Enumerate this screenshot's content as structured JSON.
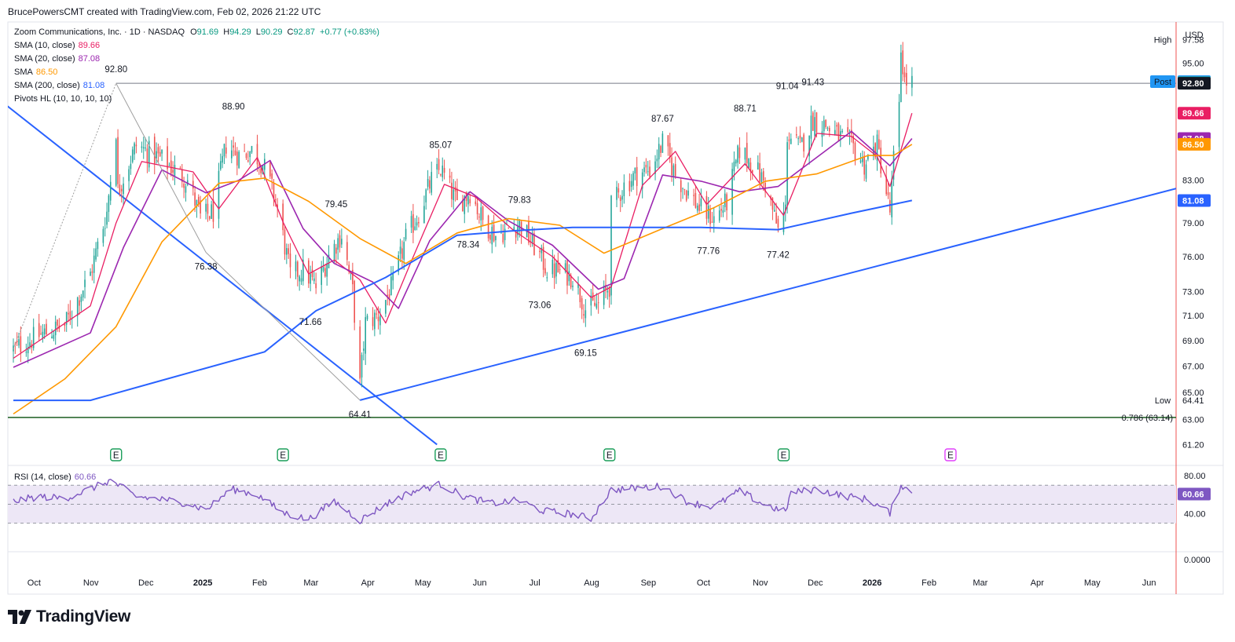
{
  "header": {
    "byline": "BrucePowersCMT created with TradingView.com, Feb 02, 2026 21:22 UTC"
  },
  "legend": {
    "symbol": "Zoom Communications, Inc. · 1D · NASDAQ",
    "ohlc": {
      "o_label": "O",
      "o": "91.69",
      "h_label": "H",
      "h": "94.29",
      "l_label": "L",
      "l": "90.29",
      "c_label": "C",
      "c": "92.87",
      "change": "+0.77 (+0.83%)"
    },
    "indicators": [
      {
        "label": "SMA (10, close)",
        "value": "89.66",
        "color": "#e91e63"
      },
      {
        "label": "SMA (20, close)",
        "value": "87.08",
        "color": "#9c27b0"
      },
      {
        "label": "SMA",
        "value": "86.50",
        "color": "#ff9800"
      },
      {
        "label": "SMA (200, close)",
        "value": "81.08",
        "color": "#2962ff"
      },
      {
        "label": "Pivots HL (10, 10, 10, 10)",
        "value": "",
        "color": "#131722"
      }
    ]
  },
  "currency": "USD",
  "colors": {
    "up": "#26a69a",
    "down": "#ef5350",
    "ink": "#131722",
    "trend": "#2962ff",
    "fib": "#1b5e20",
    "rsi": "#7e57c2",
    "rsi_band": "#ede7f6"
  },
  "chart_data": {
    "type": "candlestick",
    "symbol": "ZM",
    "timeframe": "1D",
    "price_axis": {
      "ticks": [
        97.58,
        95.0,
        92.87,
        92.8,
        89.66,
        87.08,
        86.5,
        83.0,
        81.08,
        79.0,
        76.0,
        73.0,
        71.0,
        69.0,
        67.0,
        65.0,
        63.0,
        61.2
      ],
      "scale": "log"
    },
    "time_axis": {
      "labels": [
        "Oct",
        "Nov",
        "Dec",
        "2025",
        "Feb",
        "Mar",
        "Apr",
        "May",
        "Jun",
        "Jul",
        "Aug",
        "Sep",
        "Oct",
        "Nov",
        "Dec",
        "2026",
        "Feb",
        "Mar",
        "Apr",
        "May",
        "Jun"
      ]
    },
    "price_path": [
      [
        "2024-09-30",
        68.3
      ],
      [
        "2024-10-14",
        69.4
      ],
      [
        "2024-10-28",
        70.2
      ],
      [
        "2024-11-11",
        74.5
      ],
      [
        "2024-11-20",
        80.0
      ],
      [
        "2024-11-25",
        88.0
      ],
      [
        "2024-11-26",
        82.0
      ],
      [
        "2024-12-06",
        86.4
      ],
      [
        "2024-12-20",
        85.0
      ],
      [
        "2025-01-03",
        83.0
      ],
      [
        "2025-01-10",
        79.5
      ],
      [
        "2025-01-17",
        80.0
      ],
      [
        "2025-01-24",
        86.5
      ],
      [
        "2025-01-31",
        85.4
      ],
      [
        "2025-02-07",
        85.9
      ],
      [
        "2025-02-13",
        84.6
      ],
      [
        "2025-02-20",
        81.2
      ],
      [
        "2025-02-28",
        74.4
      ],
      [
        "2025-03-07",
        74.9
      ],
      [
        "2025-03-14",
        73.4
      ],
      [
        "2025-03-21",
        76.1
      ],
      [
        "2025-03-28",
        78.0
      ],
      [
        "2025-04-03",
        73.0
      ],
      [
        "2025-04-07",
        65.5
      ],
      [
        "2025-04-10",
        70.4
      ],
      [
        "2025-04-17",
        71.0
      ],
      [
        "2025-04-25",
        73.6
      ],
      [
        "2025-05-02",
        77.6
      ],
      [
        "2025-05-09",
        79.9
      ],
      [
        "2025-05-16",
        83.0
      ],
      [
        "2025-05-21",
        84.1
      ],
      [
        "2025-05-30",
        80.7
      ],
      [
        "2025-06-06",
        81.9
      ],
      [
        "2025-06-13",
        79.2
      ],
      [
        "2025-06-20",
        77.9
      ],
      [
        "2025-06-27",
        78.5
      ],
      [
        "2025-07-03",
        78.9
      ],
      [
        "2025-07-11",
        76.9
      ],
      [
        "2025-07-18",
        74.9
      ],
      [
        "2025-07-25",
        74.7
      ],
      [
        "2025-08-01",
        74.3
      ],
      [
        "2025-08-08",
        71.6
      ],
      [
        "2025-08-15",
        71.9
      ],
      [
        "2025-08-21",
        73.5
      ],
      [
        "2025-08-22",
        80.5
      ],
      [
        "2025-08-29",
        82.5
      ],
      [
        "2025-09-05",
        83.6
      ],
      [
        "2025-09-12",
        84.0
      ],
      [
        "2025-09-19",
        86.6
      ],
      [
        "2025-09-26",
        83.5
      ],
      [
        "2025-10-03",
        81.8
      ],
      [
        "2025-10-10",
        80.2
      ],
      [
        "2025-10-17",
        79.4
      ],
      [
        "2025-10-24",
        80.9
      ],
      [
        "2025-10-31",
        86.0
      ],
      [
        "2025-11-07",
        84.6
      ],
      [
        "2025-11-14",
        82.6
      ],
      [
        "2025-11-21",
        78.3
      ],
      [
        "2025-11-25",
        80.2
      ],
      [
        "2025-11-26",
        87.5
      ],
      [
        "2025-12-03",
        86.1
      ],
      [
        "2025-12-10",
        89.0
      ],
      [
        "2025-12-17",
        88.4
      ],
      [
        "2025-12-24",
        87.3
      ],
      [
        "2025-12-31",
        86.4
      ],
      [
        "2026-01-07",
        84.5
      ],
      [
        "2026-01-14",
        86.4
      ],
      [
        "2026-01-21",
        80.0
      ],
      [
        "2026-01-23",
        85.0
      ],
      [
        "2026-01-26",
        90.0
      ],
      [
        "2026-01-27",
        96.5
      ],
      [
        "2026-01-29",
        93.0
      ],
      [
        "2026-02-02",
        92.87
      ]
    ],
    "pivots": [
      {
        "label": "92.80",
        "date": "2024-11-25",
        "price": 92.8,
        "type": "high"
      },
      {
        "label": "88.90",
        "date": "2025-01-28",
        "price": 88.9,
        "type": "high"
      },
      {
        "label": "76.38",
        "date": "2025-01-13",
        "price": 76.38,
        "type": "low"
      },
      {
        "label": "79.45",
        "date": "2025-03-25",
        "price": 79.45,
        "type": "high"
      },
      {
        "label": "71.66",
        "date": "2025-03-11",
        "price": 71.66,
        "type": "low"
      },
      {
        "label": "64.41",
        "date": "2025-04-07",
        "price": 64.41,
        "type": "low"
      },
      {
        "label": "85.07",
        "date": "2025-05-21",
        "price": 85.07,
        "type": "high"
      },
      {
        "label": "78.34",
        "date": "2025-06-05",
        "price": 78.34,
        "type": "low"
      },
      {
        "label": "79.83",
        "date": "2025-07-03",
        "price": 79.83,
        "type": "high"
      },
      {
        "label": "73.06",
        "date": "2025-07-14",
        "price": 73.06,
        "type": "low"
      },
      {
        "label": "69.15",
        "date": "2025-08-08",
        "price": 69.15,
        "type": "low"
      },
      {
        "label": "87.67",
        "date": "2025-09-19",
        "price": 87.67,
        "type": "high"
      },
      {
        "label": "77.76",
        "date": "2025-10-14",
        "price": 77.76,
        "type": "low"
      },
      {
        "label": "88.71",
        "date": "2025-11-03",
        "price": 88.71,
        "type": "high"
      },
      {
        "label": "77.42",
        "date": "2025-11-21",
        "price": 77.42,
        "type": "low"
      },
      {
        "label": "91.04",
        "date": "2025-11-26",
        "price": 91.04,
        "type": "high"
      },
      {
        "label": "91.43",
        "date": "2025-12-10",
        "price": 91.43,
        "type": "high"
      }
    ],
    "sma": {
      "sma10": [
        [
          "2024-09-30",
          67.6
        ],
        [
          "2024-11-11",
          71.8
        ],
        [
          "2024-11-25",
          79.0
        ],
        [
          "2024-12-09",
          84.8
        ],
        [
          "2025-01-06",
          83.8
        ],
        [
          "2025-01-20",
          80.3
        ],
        [
          "2025-02-10",
          85.2
        ],
        [
          "2025-02-24",
          79.1
        ],
        [
          "2025-03-10",
          74.5
        ],
        [
          "2025-03-24",
          75.7
        ],
        [
          "2025-04-07",
          74.0
        ],
        [
          "2025-04-21",
          70.4
        ],
        [
          "2025-05-05",
          75.6
        ],
        [
          "2025-05-23",
          82.6
        ],
        [
          "2025-06-09",
          81.4
        ],
        [
          "2025-06-30",
          78.3
        ],
        [
          "2025-07-21",
          76.0
        ],
        [
          "2025-08-11",
          72.5
        ],
        [
          "2025-08-22",
          73.4
        ],
        [
          "2025-09-08",
          82.5
        ],
        [
          "2025-09-26",
          85.8
        ],
        [
          "2025-10-13",
          80.7
        ],
        [
          "2025-11-03",
          84.6
        ],
        [
          "2025-11-24",
          79.7
        ],
        [
          "2025-12-12",
          87.6
        ],
        [
          "2025-12-31",
          87.3
        ],
        [
          "2026-01-14",
          85.3
        ],
        [
          "2026-01-21",
          82.4
        ],
        [
          "2026-02-02",
          89.66
        ]
      ],
      "sma20": [
        [
          "2024-09-30",
          66.9
        ],
        [
          "2024-11-11",
          69.6
        ],
        [
          "2024-11-29",
          76.8
        ],
        [
          "2024-12-20",
          84.0
        ],
        [
          "2025-01-13",
          81.8
        ],
        [
          "2025-01-31",
          83.0
        ],
        [
          "2025-02-17",
          84.9
        ],
        [
          "2025-03-07",
          78.5
        ],
        [
          "2025-03-24",
          75.4
        ],
        [
          "2025-04-14",
          73.8
        ],
        [
          "2025-04-28",
          71.6
        ],
        [
          "2025-05-15",
          77.4
        ],
        [
          "2025-06-06",
          81.9
        ],
        [
          "2025-06-27",
          79.2
        ],
        [
          "2025-07-21",
          77.0
        ],
        [
          "2025-08-15",
          73.2
        ],
        [
          "2025-08-29",
          74.1
        ],
        [
          "2025-09-19",
          83.5
        ],
        [
          "2025-10-10",
          82.9
        ],
        [
          "2025-10-31",
          81.9
        ],
        [
          "2025-11-21",
          82.4
        ],
        [
          "2025-12-12",
          85.2
        ],
        [
          "2025-12-31",
          87.8
        ],
        [
          "2026-01-21",
          84.4
        ],
        [
          "2026-02-02",
          87.08
        ]
      ],
      "sma50": [
        [
          "2024-09-30",
          63.4
        ],
        [
          "2024-10-28",
          66.0
        ],
        [
          "2024-11-25",
          70.1
        ],
        [
          "2024-12-20",
          77.3
        ],
        [
          "2025-01-20",
          82.7
        ],
        [
          "2025-02-14",
          83.2
        ],
        [
          "2025-03-10",
          81.0
        ],
        [
          "2025-04-07",
          77.6
        ],
        [
          "2025-05-02",
          75.4
        ],
        [
          "2025-05-30",
          78.1
        ],
        [
          "2025-06-27",
          79.4
        ],
        [
          "2025-07-25",
          78.8
        ],
        [
          "2025-08-18",
          76.3
        ],
        [
          "2025-09-19",
          78.5
        ],
        [
          "2025-10-17",
          80.4
        ],
        [
          "2025-11-14",
          82.9
        ],
        [
          "2025-12-12",
          83.6
        ],
        [
          "2026-01-09",
          85.4
        ],
        [
          "2026-01-23",
          85.4
        ],
        [
          "2026-02-02",
          86.5
        ]
      ],
      "sma200": [
        [
          "2024-09-30",
          64.4
        ],
        [
          "2024-11-11",
          64.4
        ],
        [
          "2024-12-20",
          65.9
        ],
        [
          "2025-02-14",
          68.1
        ],
        [
          "2025-03-14",
          71.4
        ],
        [
          "2025-04-21",
          74.2
        ],
        [
          "2025-05-30",
          77.9
        ],
        [
          "2025-06-30",
          78.3
        ],
        [
          "2025-08-01",
          78.6
        ],
        [
          "2025-09-08",
          78.6
        ],
        [
          "2025-10-10",
          78.6
        ],
        [
          "2025-11-21",
          78.4
        ],
        [
          "2025-12-31",
          79.9
        ],
        [
          "2026-02-02",
          81.08
        ]
      ]
    },
    "rsi": {
      "label": "RSI (14, close)",
      "value": "60.66",
      "axis_ticks": [
        80.0,
        40.0,
        0.0
      ],
      "bands": [
        70,
        50,
        30
      ],
      "series": [
        [
          "2024-09-30",
          53
        ],
        [
          "2024-10-14",
          58
        ],
        [
          "2024-10-28",
          56
        ],
        [
          "2024-11-11",
          66
        ],
        [
          "2024-11-22",
          75
        ],
        [
          "2024-12-06",
          58
        ],
        [
          "2024-12-20",
          55
        ],
        [
          "2025-01-03",
          51
        ],
        [
          "2025-01-13",
          44
        ],
        [
          "2025-01-27",
          66
        ],
        [
          "2025-02-10",
          60
        ],
        [
          "2025-02-24",
          41
        ],
        [
          "2025-03-10",
          34
        ],
        [
          "2025-03-24",
          53
        ],
        [
          "2025-04-07",
          33
        ],
        [
          "2025-04-21",
          50
        ],
        [
          "2025-05-05",
          63
        ],
        [
          "2025-05-21",
          71
        ],
        [
          "2025-06-04",
          57
        ],
        [
          "2025-06-18",
          51
        ],
        [
          "2025-07-02",
          54
        ],
        [
          "2025-07-16",
          43
        ],
        [
          "2025-07-30",
          40
        ],
        [
          "2025-08-11",
          35
        ],
        [
          "2025-08-22",
          65
        ],
        [
          "2025-09-05",
          67
        ],
        [
          "2025-09-19",
          69
        ],
        [
          "2025-10-03",
          52
        ],
        [
          "2025-10-17",
          47
        ],
        [
          "2025-10-31",
          64
        ],
        [
          "2025-11-14",
          49
        ],
        [
          "2025-11-25",
          42
        ],
        [
          "2025-11-28",
          62
        ],
        [
          "2025-12-12",
          66
        ],
        [
          "2025-12-26",
          59
        ],
        [
          "2026-01-09",
          55
        ],
        [
          "2026-01-21",
          41
        ],
        [
          "2026-01-27",
          71
        ],
        [
          "2026-02-02",
          60.66
        ]
      ]
    },
    "trendlines": [
      {
        "from": [
          "2024-09-11",
          92.8
        ],
        "to": [
          "2025-05-19",
          61.2
        ]
      },
      {
        "from": [
          "2025-04-07",
          64.41
        ],
        "to": [
          "2026-06-26",
          82.2
        ]
      }
    ],
    "fib_level": {
      "label": "0.786 (63.14)",
      "value": 63.14
    },
    "reference_line": {
      "value": 92.8,
      "label": "92.80"
    },
    "price_labels": [
      {
        "label": "High",
        "value": "97.58",
        "color": "#131722",
        "bg": "#ffffff",
        "price": 97.58
      },
      {
        "label": "Post",
        "value": "92.98",
        "color": "#ffffff",
        "bg": "#2196f3",
        "price": 92.98
      },
      {
        "label": "",
        "value": "92.87",
        "color": "#ffffff",
        "bg": "#26a69a",
        "price": 92.87
      },
      {
        "label": "",
        "value": "92.80",
        "color": "#ffffff",
        "bg": "#131722",
        "price": 92.8
      },
      {
        "label": "",
        "value": "89.66",
        "color": "#ffffff",
        "bg": "#e91e63",
        "price": 89.66
      },
      {
        "label": "",
        "value": "87.08",
        "color": "#ffffff",
        "bg": "#9c27b0",
        "price": 87.08
      },
      {
        "label": "",
        "value": "86.50",
        "color": "#131722",
        "bg": "#ff9800",
        "price": 86.5
      },
      {
        "label": "",
        "value": "81.08",
        "color": "#ffffff",
        "bg": "#2962ff",
        "price": 81.08
      },
      {
        "label": "Low",
        "value": "64.41",
        "color": "#131722",
        "bg": "#ffffff",
        "price": 64.41
      }
    ],
    "earnings_markers": [
      {
        "label": "E",
        "date": "2024-11-25",
        "past": true
      },
      {
        "label": "E",
        "date": "2025-02-24",
        "past": true
      },
      {
        "label": "E",
        "date": "2025-05-21",
        "past": true
      },
      {
        "label": "E",
        "date": "2025-08-21",
        "past": true
      },
      {
        "label": "E",
        "date": "2025-11-24",
        "past": true
      },
      {
        "label": "E",
        "date": "2026-02-23",
        "past": false
      }
    ]
  },
  "brand": {
    "name": "TradingView"
  }
}
